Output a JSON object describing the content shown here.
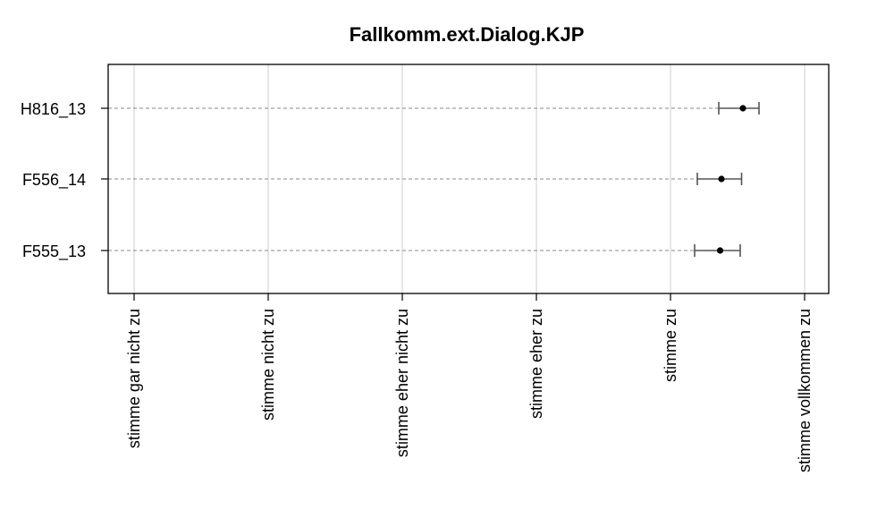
{
  "chart_data": {
    "type": "dotplot-errorbar",
    "title": "Fallkomm.ext.Dialog.KJP",
    "xlabel": "",
    "ylabel": "",
    "xlim": [
      0.92,
      6.2
    ],
    "ticks": [
      {
        "value": 1,
        "label": "stimme gar nicht zu"
      },
      {
        "value": 2,
        "label": "stimme nicht zu"
      },
      {
        "value": 3,
        "label": "stimme eher nicht zu"
      },
      {
        "value": 4,
        "label": "stimme eher zu"
      },
      {
        "value": 5,
        "label": "stimme zu"
      },
      {
        "value": 6,
        "label": "stimme vollkommen zu"
      }
    ],
    "grid": true,
    "categories": [
      "H816_13",
      "F556_14",
      "F555_13"
    ],
    "points": [
      {
        "label": "H816_13",
        "mean": 5.54,
        "lower": 5.36,
        "upper": 5.66
      },
      {
        "label": "F556_14",
        "mean": 5.38,
        "lower": 5.2,
        "upper": 5.53
      },
      {
        "label": "F555_13",
        "mean": 5.37,
        "lower": 5.18,
        "upper": 5.52
      }
    ]
  }
}
